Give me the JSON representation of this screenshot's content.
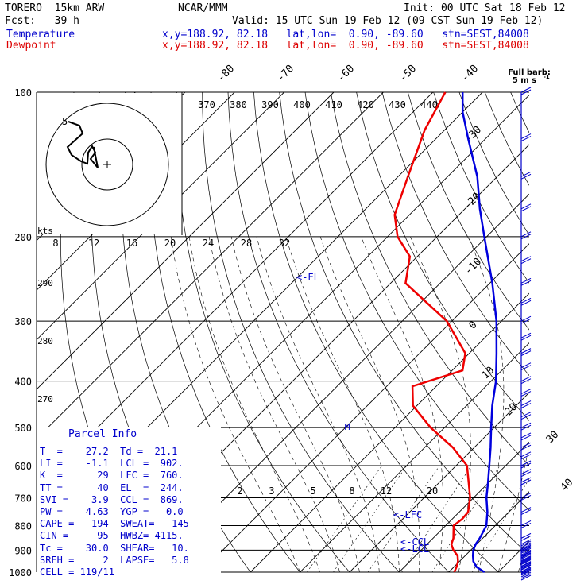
{
  "header": {
    "model": "TORERO  15km ARW",
    "center": "NCAR/MMM",
    "init": "Init: 00 UTC Sat 18 Feb 12",
    "fcst": "Fcst:   39 h",
    "valid": "Valid: 15 UTC Sun 19 Feb 12 (09 CST Sun 19 Feb 12)",
    "temp_label": "Temperature",
    "temp_loc": "x,y=188.92, 82.18   lat,lon=  0.90, -89.60   stn=SEST,84008",
    "dew_label": "Dewpoint",
    "dew_loc": "x,y=188.92, 82.18   lat,lon=  0.90, -89.60   stn=SEST,84008"
  },
  "barb_legend": {
    "line1": "Full barb:",
    "line2": "5 m s",
    "sup": "-1"
  },
  "colors": {
    "temperature": "#0000dd",
    "dewpoint": "#ee0000",
    "barbs": "#0000cc",
    "theta_lines": "#000000"
  },
  "hodograph": {
    "units_label": "kts",
    "ring_label": "5",
    "ring_values": [
      5,
      10
    ]
  },
  "parcel_info": {
    "title": "Parcel Info",
    "rows": [
      "T  =    27.2  Td =  21.1",
      "LI =    -1.1  LCL =  902.",
      "K  =      29  LFC =  760.",
      "TT =      40  EL  =  244.",
      "SVI =    3.9  CCL =  869.",
      "PW =    4.63  YGP =   0.0",
      "CAPE =   194  SWEAT=   145",
      "CIN =    -95  HWBZ= 4115.",
      "Tc =    30.0  SHEAR=   10.",
      "SREH =     2  LAPSE=   5.8",
      "CELL = 119/11"
    ]
  },
  "chart_data": {
    "type": "line",
    "title": "",
    "xlabel": "",
    "ylabel": "",
    "y_axis": "pressure (hPa, log scale)",
    "pressure_levels": [
      100,
      200,
      300,
      400,
      500,
      600,
      700,
      800,
      900,
      1000
    ],
    "isotherm_labels": [
      -80,
      -70,
      -60,
      -50,
      -40,
      -30,
      -20,
      -10,
      0,
      10,
      20,
      30,
      40
    ],
    "mixing_ratio_labels": [
      2,
      3,
      5,
      8,
      12,
      20
    ],
    "theta_e_labels": [
      370,
      380,
      390,
      400,
      410,
      420,
      430,
      440
    ],
    "theta_e_low_labels": [
      290,
      280,
      270
    ],
    "temperature_scale_labels": [
      8,
      12,
      16,
      20,
      24,
      28,
      32
    ],
    "annotations": [
      "<-EL",
      "<-LFC",
      "<-CCL",
      "<-LCL",
      "M"
    ],
    "series": [
      {
        "name": "Temperature",
        "points": [
          [
            1000,
            27.2
          ],
          [
            975,
            24.5
          ],
          [
            950,
            22.8
          ],
          [
            925,
            21.6
          ],
          [
            900,
            20.5
          ],
          [
            875,
            19.8
          ],
          [
            850,
            19.4
          ],
          [
            800,
            18.2
          ],
          [
            750,
            15.7
          ],
          [
            700,
            12.6
          ],
          [
            650,
            9.8
          ],
          [
            600,
            6.7
          ],
          [
            550,
            3.3
          ],
          [
            500,
            -0.6
          ],
          [
            450,
            -4.8
          ],
          [
            400,
            -9.0
          ],
          [
            350,
            -14.5
          ],
          [
            300,
            -21.0
          ],
          [
            250,
            -29.5
          ],
          [
            200,
            -40.5
          ],
          [
            175,
            -47.0
          ],
          [
            150,
            -54.0
          ],
          [
            125,
            -63.5
          ],
          [
            110,
            -70.0
          ],
          [
            100,
            -74.0
          ]
        ]
      },
      {
        "name": "Dewpoint",
        "points": [
          [
            1000,
            21.1
          ],
          [
            975,
            20.5
          ],
          [
            950,
            19.7
          ],
          [
            925,
            18.5
          ],
          [
            900,
            16.5
          ],
          [
            875,
            14.9
          ],
          [
            850,
            14.1
          ],
          [
            800,
            11.6
          ],
          [
            775,
            12.0
          ],
          [
            750,
            11.8
          ],
          [
            700,
            9.3
          ],
          [
            650,
            5.9
          ],
          [
            600,
            2.2
          ],
          [
            550,
            -4.3
          ],
          [
            500,
            -12.8
          ],
          [
            450,
            -20.8
          ],
          [
            410,
            -24.8
          ],
          [
            380,
            -17.9
          ],
          [
            350,
            -20.8
          ],
          [
            300,
            -31.0
          ],
          [
            250,
            -47.0
          ],
          [
            220,
            -51.5
          ],
          [
            200,
            -58.0
          ],
          [
            180,
            -63.0
          ],
          [
            150,
            -68.0
          ],
          [
            120,
            -74.0
          ],
          [
            100,
            -77.5
          ]
        ]
      }
    ],
    "wind_barbs_kts_at": [
      100,
      125,
      150,
      175,
      200,
      225,
      250,
      275,
      300,
      325,
      350,
      375,
      400,
      425,
      450,
      475,
      500,
      525,
      550,
      575,
      600,
      625,
      650,
      700,
      750,
      800,
      850,
      875,
      900,
      925,
      950,
      975,
      1000
    ]
  }
}
